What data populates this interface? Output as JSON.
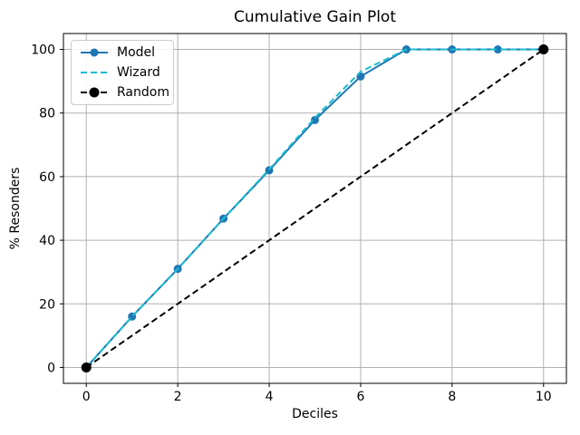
{
  "chart_data": {
    "type": "line",
    "title": "Cumulative Gain Plot",
    "xlabel": "Deciles",
    "ylabel": "% Resonders",
    "xlim": [
      -0.5,
      10.5
    ],
    "ylim": [
      -5,
      105
    ],
    "xticks": [
      0,
      2,
      4,
      6,
      8,
      10
    ],
    "yticks": [
      0,
      20,
      40,
      60,
      80,
      100
    ],
    "grid": true,
    "grid_color": "#b0b0b0",
    "spine_color": "#000000",
    "tick_color": "#000000",
    "legend_position": "upper-left",
    "series": [
      {
        "name": "Model",
        "color": "#1f77b4",
        "dash": "none",
        "marker": true,
        "marker_size": 4.5,
        "line_width": 2,
        "x": [
          0,
          1,
          2,
          3,
          4,
          5,
          6,
          7,
          8,
          9,
          10
        ],
        "y": [
          0,
          16,
          31,
          46.8,
          62,
          77.8,
          91.5,
          100,
          100,
          100,
          100
        ]
      },
      {
        "name": "Wizard",
        "color": "#17becf",
        "dash": "7 4",
        "marker": false,
        "marker_size": 0,
        "line_width": 2,
        "x": [
          0,
          1,
          2,
          3,
          4,
          5,
          6,
          7,
          8,
          9,
          10
        ],
        "y": [
          0,
          16,
          31,
          46.8,
          62.3,
          78.5,
          93,
          100,
          100,
          100,
          100
        ]
      },
      {
        "name": "Random",
        "color": "#000000",
        "dash": "7 4",
        "marker": true,
        "marker_size": 5.5,
        "line_width": 2,
        "x": [
          0,
          10
        ],
        "y": [
          0,
          100
        ]
      }
    ]
  }
}
